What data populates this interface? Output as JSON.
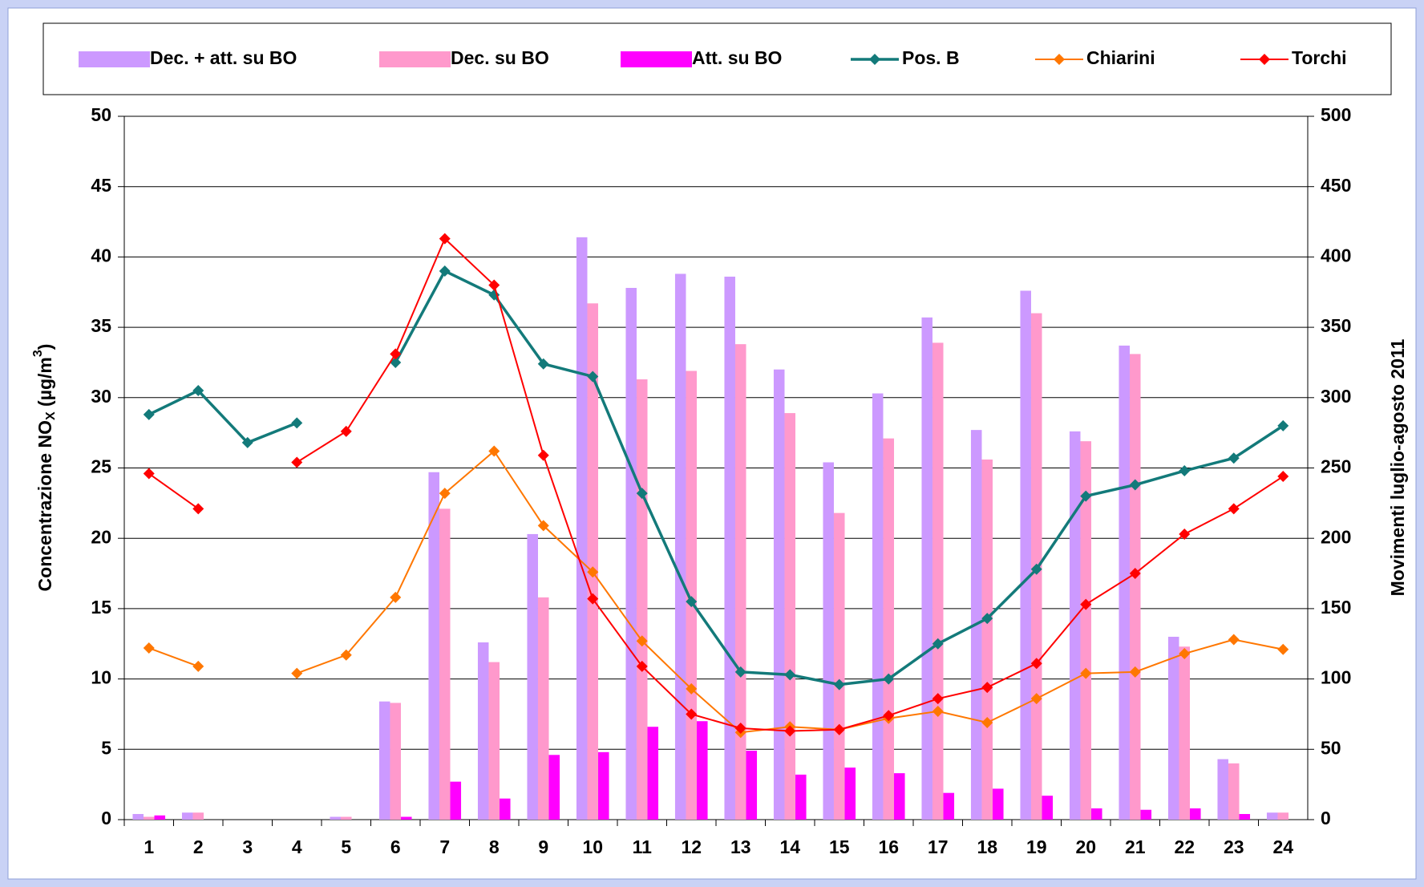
{
  "chart_data": {
    "type": "combo",
    "categories": [
      "1",
      "2",
      "3",
      "4",
      "5",
      "6",
      "7",
      "8",
      "9",
      "10",
      "11",
      "12",
      "13",
      "14",
      "15",
      "16",
      "17",
      "18",
      "19",
      "20",
      "21",
      "22",
      "23",
      "24"
    ],
    "y_label": [
      "Concentrazione NO",
      "X",
      " (µg/m",
      "3",
      ")"
    ],
    "y2_label": "Movimenti luglio-agosto 2011",
    "ylim": [
      0,
      50
    ],
    "yticks": [
      0,
      5,
      10,
      15,
      20,
      25,
      30,
      35,
      40,
      45,
      50
    ],
    "y2lim": [
      0,
      500
    ],
    "y2ticks": [
      0,
      50,
      100,
      150,
      200,
      250,
      300,
      350,
      400,
      450,
      500
    ],
    "grid": true,
    "legend": "top",
    "series": [
      {
        "name": "Dec. + att. su BO",
        "type": "bar",
        "axis": "y2",
        "color": "#cc99ff",
        "values": [
          4,
          5,
          0,
          0,
          2,
          84,
          247,
          126,
          203,
          414,
          378,
          388,
          386,
          320,
          254,
          303,
          357,
          277,
          376,
          276,
          337,
          130,
          43,
          5
        ]
      },
      {
        "name": "Dec. su BO",
        "type": "bar",
        "axis": "y2",
        "color": "#ff99cc",
        "values": [
          2,
          5,
          0,
          0,
          2,
          83,
          221,
          112,
          158,
          367,
          313,
          319,
          338,
          289,
          218,
          271,
          339,
          256,
          360,
          269,
          331,
          123,
          40,
          5
        ]
      },
      {
        "name": "Att. su BO",
        "type": "bar",
        "axis": "y2",
        "color": "#ff00ff",
        "values": [
          3,
          0,
          0,
          0,
          0,
          2,
          27,
          15,
          46,
          48,
          66,
          70,
          49,
          32,
          37,
          33,
          19,
          22,
          17,
          8,
          7,
          8,
          4,
          0
        ]
      },
      {
        "name": "Pos. B",
        "type": "line",
        "axis": "y",
        "color": "#137a7a",
        "values": [
          28.8,
          30.5,
          26.8,
          28.2,
          null,
          32.5,
          39.0,
          37.3,
          32.4,
          31.5,
          23.2,
          15.5,
          10.5,
          10.3,
          9.6,
          10.0,
          12.5,
          14.3,
          17.8,
          23.0,
          23.8,
          24.8,
          25.7,
          28.0
        ]
      },
      {
        "name": "Chiarini",
        "type": "line",
        "axis": "y",
        "color": "#ff7700",
        "values": [
          12.2,
          10.9,
          null,
          10.4,
          11.7,
          15.8,
          23.2,
          26.2,
          20.9,
          17.6,
          12.7,
          9.3,
          6.2,
          6.6,
          6.4,
          7.2,
          7.7,
          6.9,
          8.6,
          10.4,
          10.5,
          11.8,
          12.8,
          12.1
        ]
      },
      {
        "name": "Torchi",
        "type": "line",
        "axis": "y",
        "color": "#ff0000",
        "values": [
          24.6,
          22.1,
          null,
          25.4,
          27.6,
          33.1,
          41.3,
          38.0,
          25.9,
          15.7,
          10.9,
          7.5,
          6.5,
          6.3,
          6.4,
          7.4,
          8.6,
          9.4,
          11.1,
          15.3,
          17.5,
          20.3,
          22.1,
          24.4
        ]
      }
    ]
  }
}
